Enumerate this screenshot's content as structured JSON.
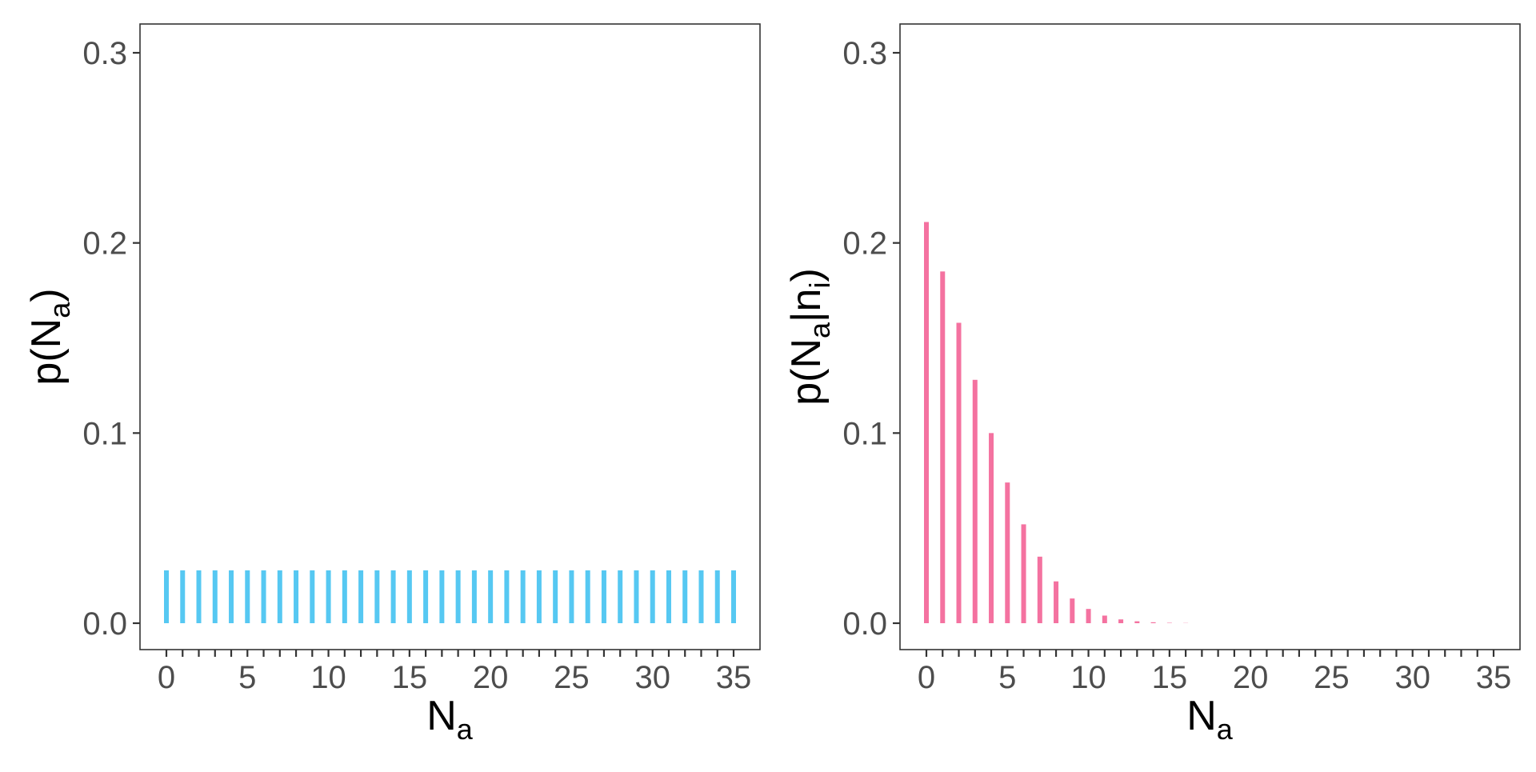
{
  "chart_data": [
    {
      "type": "bar",
      "title": "",
      "xlabel": "N",
      "xlabel_sub": "a",
      "ylabel": "p(N",
      "ylabel_sub": "a",
      "ylabel_end": ")",
      "xlim": [
        0,
        35
      ],
      "ylim": [
        0,
        0.3
      ],
      "x_ticks": [
        0,
        5,
        10,
        15,
        20,
        25,
        30,
        35
      ],
      "x_tick_labels": [
        "0",
        "5",
        "10",
        "15",
        "20",
        "25",
        "30",
        "35"
      ],
      "y_ticks": [
        0,
        0.1,
        0.2,
        0.3
      ],
      "y_tick_labels": [
        "0.0",
        "0.1",
        "0.2",
        "0.3"
      ],
      "grid": false,
      "color": "#56c8f2",
      "x": [
        0,
        1,
        2,
        3,
        4,
        5,
        6,
        7,
        8,
        9,
        10,
        11,
        12,
        13,
        14,
        15,
        16,
        17,
        18,
        19,
        20,
        21,
        22,
        23,
        24,
        25,
        26,
        27,
        28,
        29,
        30,
        31,
        32,
        33,
        34,
        35
      ],
      "values": [
        0.0278,
        0.0278,
        0.0278,
        0.0278,
        0.0278,
        0.0278,
        0.0278,
        0.0278,
        0.0278,
        0.0278,
        0.0278,
        0.0278,
        0.0278,
        0.0278,
        0.0278,
        0.0278,
        0.0278,
        0.0278,
        0.0278,
        0.0278,
        0.0278,
        0.0278,
        0.0278,
        0.0278,
        0.0278,
        0.0278,
        0.0278,
        0.0278,
        0.0278,
        0.0278,
        0.0278,
        0.0278,
        0.0278,
        0.0278,
        0.0278,
        0.0278
      ]
    },
    {
      "type": "bar",
      "title": "",
      "xlabel": "N",
      "xlabel_sub": "a",
      "ylabel": "p(N",
      "ylabel_sub": "a",
      "ylabel_mid": "|n",
      "ylabel_sub2": "i",
      "ylabel_end": ")",
      "xlim": [
        0,
        35
      ],
      "ylim": [
        0,
        0.3
      ],
      "x_ticks": [
        0,
        5,
        10,
        15,
        20,
        25,
        30,
        35
      ],
      "x_tick_labels": [
        "0",
        "5",
        "10",
        "15",
        "20",
        "25",
        "30",
        "35"
      ],
      "y_ticks": [
        0,
        0.1,
        0.2,
        0.3
      ],
      "y_tick_labels": [
        "0.0",
        "0.1",
        "0.2",
        "0.3"
      ],
      "grid": false,
      "color": "#f472a0",
      "x": [
        0,
        1,
        2,
        3,
        4,
        5,
        6,
        7,
        8,
        9,
        10,
        11,
        12,
        13,
        14,
        15,
        16,
        17,
        18,
        19,
        20,
        21,
        22,
        23,
        24,
        25,
        26,
        27,
        28,
        29,
        30,
        31,
        32,
        33,
        34,
        35
      ],
      "values": [
        0.211,
        0.185,
        0.158,
        0.128,
        0.1,
        0.074,
        0.052,
        0.035,
        0.022,
        0.013,
        0.0075,
        0.004,
        0.002,
        0.001,
        0.0005,
        0.0002,
        0.0001,
        0,
        0,
        0,
        0,
        0,
        0,
        0,
        0,
        0,
        0,
        0,
        0,
        0,
        0,
        0,
        0,
        0,
        0,
        0
      ]
    }
  ]
}
